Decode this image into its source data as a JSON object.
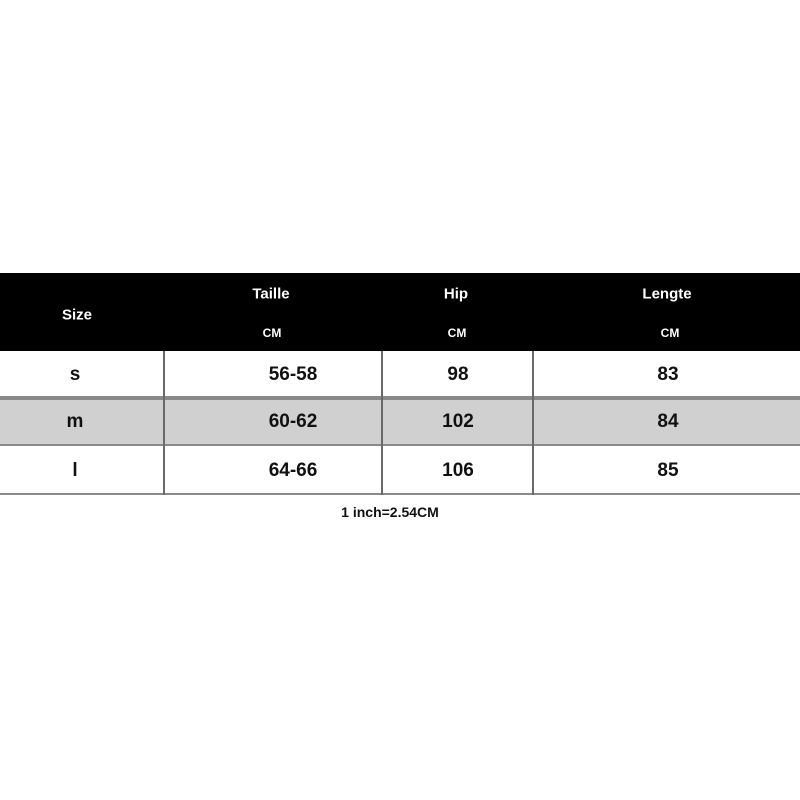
{
  "table": {
    "header": [
      {
        "label": "Size"
      },
      {
        "label": "Taille",
        "unit": "CM"
      },
      {
        "label": "Hip",
        "unit": "CM"
      },
      {
        "label": "Lengte",
        "unit": "CM"
      }
    ],
    "rows": [
      [
        "s",
        "56-58",
        "98",
        "83"
      ],
      [
        "m",
        "60-62",
        "102",
        "84"
      ],
      [
        "l",
        "64-66",
        "106",
        "85"
      ]
    ]
  },
  "note": "1 inch=2.54CM"
}
